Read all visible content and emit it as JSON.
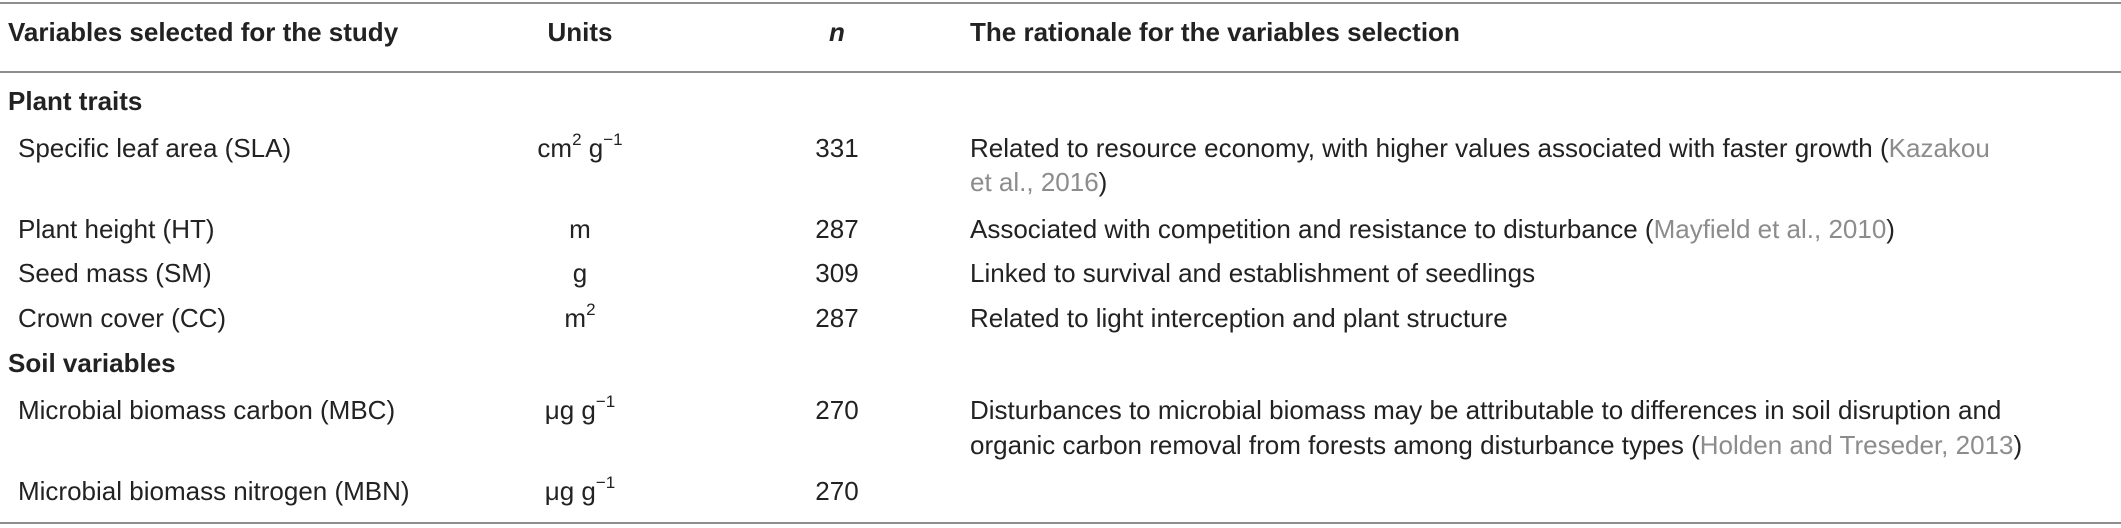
{
  "header": {
    "variables": "Variables selected for the study",
    "units": "Units",
    "n": "n",
    "rationale": "The rationale for the variables selection"
  },
  "sections": [
    {
      "title": "Plant traits",
      "rows": [
        {
          "variable": "Specific leaf area (SLA)",
          "unit_base": "cm",
          "unit_sup1": "2",
          "unit_mid": " g",
          "unit_sup2": "−1",
          "n": "331",
          "rationale_line1": "Related to resource economy, with higher values associated with faster growth (",
          "rationale_cite1": "Kazakou",
          "rationale_line2_cite": "et al., 2016",
          "rationale_line2_end": ")"
        },
        {
          "variable": "Plant height (HT)",
          "unit": "m",
          "n": "287",
          "rationale_text": "Associated with competition and resistance to disturbance (",
          "rationale_cite": "Mayfield et al., 2010",
          "rationale_end": ")"
        },
        {
          "variable": "Seed mass (SM)",
          "unit": "g",
          "n": "309",
          "rationale_text": "Linked to survival and establishment of seedlings"
        },
        {
          "variable": "Crown cover (CC)",
          "unit_base": "m",
          "unit_sup": "2",
          "n": "287",
          "rationale_text": "Related to light interception and plant structure"
        }
      ]
    },
    {
      "title": "Soil variables",
      "rows": [
        {
          "variable": "Microbial biomass carbon (MBC)",
          "unit_base": "μg g",
          "unit_sup": "−1",
          "n": "270",
          "rationale_line1": "Disturbances to microbial biomass may be attributable to differences in soil disruption and",
          "rationale_line2": "organic carbon removal from forests among disturbance types (",
          "rationale_cite": "Holden and Treseder, 2013",
          "rationale_end": ")"
        },
        {
          "variable": "Microbial biomass nitrogen (MBN)",
          "unit_base": "μg g",
          "unit_sup": "−1",
          "n": "270"
        }
      ]
    }
  ]
}
